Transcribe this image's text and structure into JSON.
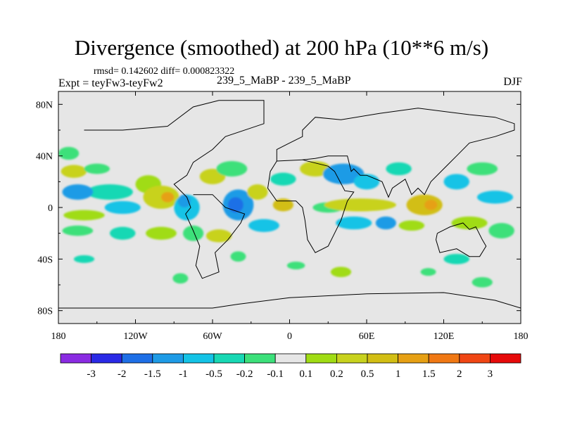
{
  "header": {
    "title": "Divergence (smoothed) at 200 hPa (10**6 m/s)",
    "stats": "rmsd= 0.142602  diff= 0.000823322",
    "experiment": "Expt = teyFw3-teyFw2",
    "runs": "239_5_MaBP - 239_5_MaBP",
    "season": "DJF"
  },
  "chart_data": {
    "type": "heatmap",
    "title": "Divergence (smoothed) at 200 hPa (10**6 m/s)",
    "x_ticks": [
      "180",
      "120W",
      "60W",
      "0",
      "60E",
      "120E",
      "180"
    ],
    "x_tick_values": [
      -180,
      -120,
      -60,
      0,
      60,
      120,
      180
    ],
    "y_ticks": [
      "80N",
      "40N",
      "0",
      "40S",
      "80S"
    ],
    "y_tick_values": [
      80,
      40,
      0,
      -40,
      -80
    ],
    "xlim": [
      -180,
      180
    ],
    "ylim": [
      -90,
      90
    ],
    "background_color": "#e6e6e6",
    "colorbar": {
      "colors": [
        "#8a2be2",
        "#2a2ae6",
        "#1e6fe6",
        "#1e9be6",
        "#14c3e6",
        "#18d8b4",
        "#3ce07a",
        "#e6e6e6",
        "#a0dc14",
        "#c8d21e",
        "#d2be14",
        "#e6a014",
        "#f07814",
        "#f04614",
        "#e60a0a"
      ],
      "labels": [
        "-3",
        "-2",
        "-1.5",
        "-1",
        "-0.5",
        "-0.2",
        "-0.1",
        "0.1",
        "0.2",
        "0.5",
        "1",
        "1.5",
        "2",
        "3"
      ]
    },
    "blobs": [
      {
        "lon": -172,
        "lat": 42,
        "rx": 8,
        "ry": 5,
        "color": "#3ce07a"
      },
      {
        "lon": -168,
        "lat": 28,
        "rx": 10,
        "ry": 5,
        "color": "#c8d21e"
      },
      {
        "lon": -150,
        "lat": 30,
        "rx": 10,
        "ry": 4,
        "color": "#3ce07a"
      },
      {
        "lon": -140,
        "lat": 12,
        "rx": 18,
        "ry": 6,
        "color": "#18d8b4"
      },
      {
        "lon": -165,
        "lat": 12,
        "rx": 12,
        "ry": 6,
        "color": "#1e9be6"
      },
      {
        "lon": -110,
        "lat": 18,
        "rx": 10,
        "ry": 7,
        "color": "#a0dc14"
      },
      {
        "lon": -100,
        "lat": 8,
        "rx": 14,
        "ry": 9,
        "color": "#c8d21e"
      },
      {
        "lon": -95,
        "lat": 8,
        "rx": 5,
        "ry": 4,
        "color": "#e6a014"
      },
      {
        "lon": -130,
        "lat": 0,
        "rx": 14,
        "ry": 5,
        "color": "#14c3e6"
      },
      {
        "lon": -160,
        "lat": -6,
        "rx": 16,
        "ry": 4,
        "color": "#a0dc14"
      },
      {
        "lon": -165,
        "lat": -18,
        "rx": 12,
        "ry": 4,
        "color": "#3ce07a"
      },
      {
        "lon": -80,
        "lat": 0,
        "rx": 10,
        "ry": 10,
        "color": "#14c3e6"
      },
      {
        "lon": -82,
        "lat": 5,
        "rx": 5,
        "ry": 5,
        "color": "#1e9be6"
      },
      {
        "lon": -100,
        "lat": -20,
        "rx": 12,
        "ry": 5,
        "color": "#a0dc14"
      },
      {
        "lon": -130,
        "lat": -20,
        "rx": 10,
        "ry": 5,
        "color": "#18d8b4"
      },
      {
        "lon": -75,
        "lat": -20,
        "rx": 8,
        "ry": 6,
        "color": "#3ce07a"
      },
      {
        "lon": -60,
        "lat": 24,
        "rx": 10,
        "ry": 6,
        "color": "#c8d21e"
      },
      {
        "lon": -45,
        "lat": 30,
        "rx": 12,
        "ry": 6,
        "color": "#3ce07a"
      },
      {
        "lon": -40,
        "lat": 2,
        "rx": 12,
        "ry": 12,
        "color": "#1e9be6"
      },
      {
        "lon": -42,
        "lat": 2,
        "rx": 6,
        "ry": 6,
        "color": "#1e6fe6"
      },
      {
        "lon": -25,
        "lat": 12,
        "rx": 8,
        "ry": 6,
        "color": "#c8d21e"
      },
      {
        "lon": -5,
        "lat": 2,
        "rx": 8,
        "ry": 5,
        "color": "#d2be14"
      },
      {
        "lon": -20,
        "lat": -14,
        "rx": 12,
        "ry": 5,
        "color": "#14c3e6"
      },
      {
        "lon": -55,
        "lat": -22,
        "rx": 10,
        "ry": 5,
        "color": "#c8d21e"
      },
      {
        "lon": -40,
        "lat": -38,
        "rx": 6,
        "ry": 4,
        "color": "#3ce07a"
      },
      {
        "lon": -5,
        "lat": 22,
        "rx": 10,
        "ry": 5,
        "color": "#18d8b4"
      },
      {
        "lon": 20,
        "lat": 30,
        "rx": 12,
        "ry": 6,
        "color": "#c8d21e"
      },
      {
        "lon": 42,
        "lat": 26,
        "rx": 16,
        "ry": 8,
        "color": "#1e9be6"
      },
      {
        "lon": 60,
        "lat": 20,
        "rx": 10,
        "ry": 6,
        "color": "#14c3e6"
      },
      {
        "lon": 30,
        "lat": 0,
        "rx": 12,
        "ry": 4,
        "color": "#3ce07a"
      },
      {
        "lon": 55,
        "lat": 2,
        "rx": 28,
        "ry": 5,
        "color": "#c8d21e"
      },
      {
        "lon": 50,
        "lat": -12,
        "rx": 14,
        "ry": 5,
        "color": "#14c3e6"
      },
      {
        "lon": 75,
        "lat": -12,
        "rx": 8,
        "ry": 5,
        "color": "#1e9be6"
      },
      {
        "lon": 95,
        "lat": -14,
        "rx": 10,
        "ry": 4,
        "color": "#a0dc14"
      },
      {
        "lon": 105,
        "lat": 2,
        "rx": 14,
        "ry": 8,
        "color": "#d2be14"
      },
      {
        "lon": 110,
        "lat": 2,
        "rx": 5,
        "ry": 4,
        "color": "#e6a014"
      },
      {
        "lon": 85,
        "lat": 30,
        "rx": 10,
        "ry": 5,
        "color": "#18d8b4"
      },
      {
        "lon": 130,
        "lat": 20,
        "rx": 10,
        "ry": 6,
        "color": "#14c3e6"
      },
      {
        "lon": 150,
        "lat": 30,
        "rx": 12,
        "ry": 5,
        "color": "#3ce07a"
      },
      {
        "lon": 160,
        "lat": 8,
        "rx": 14,
        "ry": 5,
        "color": "#14c3e6"
      },
      {
        "lon": 140,
        "lat": -12,
        "rx": 14,
        "ry": 5,
        "color": "#a0dc14"
      },
      {
        "lon": 165,
        "lat": -18,
        "rx": 10,
        "ry": 6,
        "color": "#3ce07a"
      },
      {
        "lon": 130,
        "lat": -40,
        "rx": 10,
        "ry": 4,
        "color": "#18d8b4"
      },
      {
        "lon": 150,
        "lat": -58,
        "rx": 8,
        "ry": 4,
        "color": "#3ce07a"
      },
      {
        "lon": 108,
        "lat": -50,
        "rx": 6,
        "ry": 3,
        "color": "#3ce07a"
      },
      {
        "lon": 40,
        "lat": -50,
        "rx": 8,
        "ry": 4,
        "color": "#a0dc14"
      },
      {
        "lon": -85,
        "lat": -55,
        "rx": 6,
        "ry": 4,
        "color": "#3ce07a"
      },
      {
        "lon": -160,
        "lat": -40,
        "rx": 8,
        "ry": 3,
        "color": "#18d8b4"
      },
      {
        "lon": 5,
        "lat": -45,
        "rx": 7,
        "ry": 3,
        "color": "#3ce07a"
      }
    ],
    "coastline_paths": [
      [
        [
          -160,
          60
        ],
        [
          -130,
          60
        ],
        [
          -95,
          63
        ],
        [
          -75,
          78
        ],
        [
          -55,
          83
        ],
        [
          -20,
          83
        ],
        [
          -20,
          65
        ],
        [
          -50,
          55
        ],
        [
          -60,
          45
        ],
        [
          -75,
          35
        ],
        [
          -80,
          25
        ],
        [
          -90,
          18
        ],
        [
          -80,
          8
        ],
        [
          -77,
          0
        ],
        [
          -81,
          -5
        ],
        [
          -75,
          -18
        ],
        [
          -70,
          -30
        ],
        [
          -73,
          -45
        ],
        [
          -68,
          -55
        ],
        [
          -55,
          -50
        ],
        [
          -58,
          -35
        ],
        [
          -48,
          -25
        ],
        [
          -38,
          -12
        ],
        [
          -35,
          -5
        ],
        [
          -50,
          0
        ],
        [
          -60,
          10
        ],
        [
          -75,
          10
        ]
      ],
      [
        [
          -10,
          36
        ],
        [
          -15,
          28
        ],
        [
          -17,
          15
        ],
        [
          -10,
          5
        ],
        [
          5,
          5
        ],
        [
          10,
          0
        ],
        [
          12,
          -10
        ],
        [
          14,
          -25
        ],
        [
          20,
          -35
        ],
        [
          30,
          -30
        ],
        [
          35,
          -20
        ],
        [
          40,
          -10
        ],
        [
          45,
          5
        ],
        [
          50,
          12
        ],
        [
          43,
          13
        ],
        [
          35,
          28
        ],
        [
          30,
          32
        ],
        [
          10,
          37
        ],
        [
          -10,
          36
        ]
      ],
      [
        [
          -10,
          36
        ],
        [
          -10,
          45
        ],
        [
          0,
          50
        ],
        [
          10,
          55
        ],
        [
          10,
          60
        ],
        [
          20,
          70
        ],
        [
          40,
          68
        ],
        [
          70,
          73
        ],
        [
          100,
          77
        ],
        [
          140,
          72
        ],
        [
          160,
          70
        ],
        [
          175,
          65
        ],
        [
          175,
          60
        ],
        [
          160,
          55
        ],
        [
          140,
          50
        ],
        [
          130,
          40
        ],
        [
          120,
          30
        ],
        [
          110,
          20
        ],
        [
          105,
          10
        ],
        [
          100,
          15
        ],
        [
          95,
          10
        ],
        [
          90,
          22
        ],
        [
          80,
          15
        ],
        [
          77,
          8
        ],
        [
          72,
          20
        ],
        [
          60,
          25
        ],
        [
          55,
          25
        ],
        [
          50,
          30
        ],
        [
          48,
          28
        ],
        [
          45,
          40
        ],
        [
          40,
          40
        ],
        [
          30,
          40
        ],
        [
          20,
          38
        ],
        [
          10,
          37
        ]
      ],
      [
        [
          115,
          -20
        ],
        [
          125,
          -15
        ],
        [
          135,
          -12
        ],
        [
          140,
          -17
        ],
        [
          145,
          -15
        ],
        [
          150,
          -25
        ],
        [
          153,
          -30
        ],
        [
          148,
          -38
        ],
        [
          140,
          -38
        ],
        [
          130,
          -32
        ],
        [
          117,
          -35
        ],
        [
          114,
          -25
        ],
        [
          115,
          -20
        ]
      ],
      [
        [
          -180,
          -78
        ],
        [
          -60,
          -78
        ],
        [
          -40,
          -75
        ],
        [
          0,
          -70
        ],
        [
          60,
          -67
        ],
        [
          120,
          -66
        ],
        [
          160,
          -72
        ],
        [
          180,
          -78
        ]
      ]
    ]
  }
}
